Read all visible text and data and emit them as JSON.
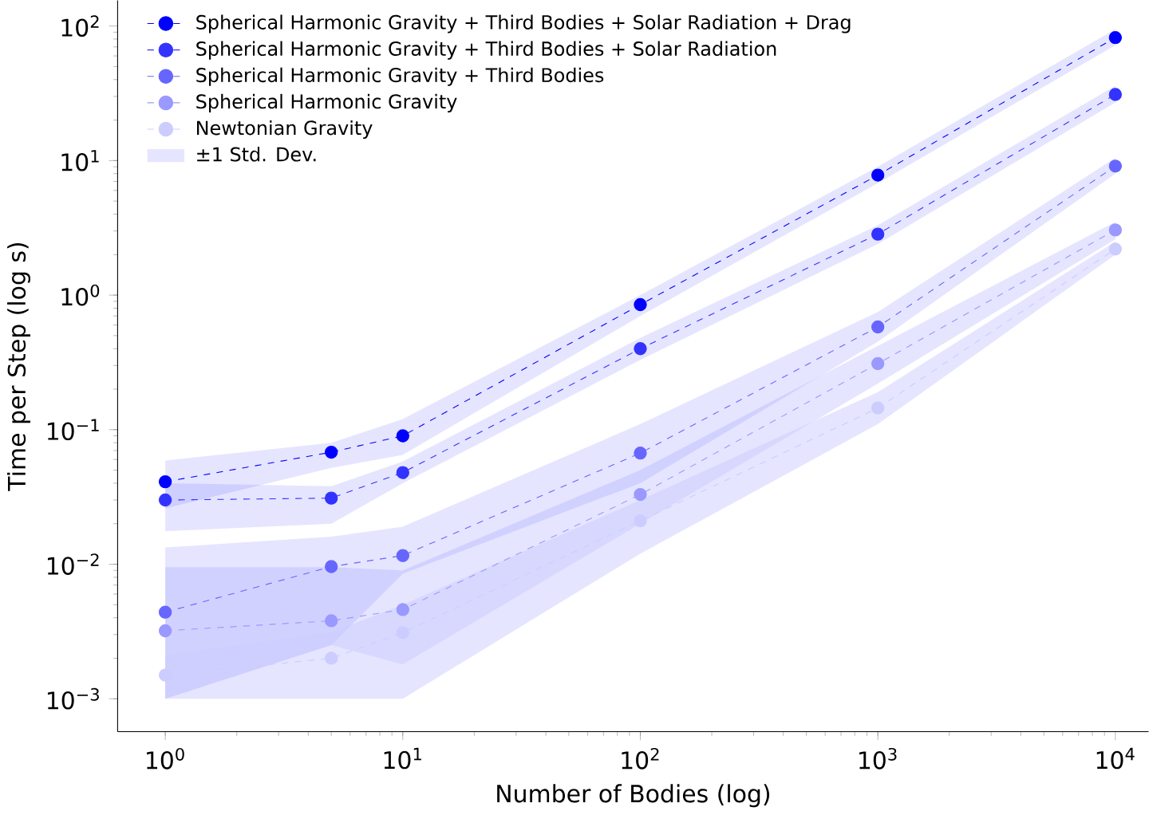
{
  "chart_data": {
    "type": "line",
    "xlabel": "Number of Bodies (log)",
    "ylabel": "Time per Step (log s)",
    "log": "xy",
    "x": [
      1,
      5,
      10,
      100,
      1000,
      10000
    ],
    "xlim": [
      0.63,
      13800
    ],
    "ylim": [
      0.00057,
      155
    ],
    "xticks": [
      {
        "value": 1,
        "label": "10$^{0}$"
      },
      {
        "value": 10,
        "label": "10$^{1}$"
      },
      {
        "value": 100,
        "label": "10$^{2}$"
      },
      {
        "value": 1000,
        "label": "10$^{3}$"
      },
      {
        "value": 10000,
        "label": "10$^{4}$"
      }
    ],
    "yticks": [
      {
        "value": 0.001,
        "label": "10$^{−3}$"
      },
      {
        "value": 0.01,
        "label": "10$^{−2}$"
      },
      {
        "value": 0.1,
        "label": "10$^{−1}$"
      },
      {
        "value": 1,
        "label": "10$^{0}$"
      },
      {
        "value": 10,
        "label": "10$^{1}$"
      },
      {
        "value": 100,
        "label": "10$^{2}$"
      }
    ],
    "series": [
      {
        "name": "Spherical Harmonic Gravity + Third Bodies + Solar Radiation + Drag",
        "color": "#0000ff",
        "values": [
          0.041,
          0.068,
          0.09,
          0.85,
          7.8,
          82
        ],
        "lower": [
          0.026,
          0.052,
          0.065,
          0.7,
          6.8,
          72
        ],
        "upper": [
          0.059,
          0.08,
          0.12,
          1.0,
          9,
          95
        ]
      },
      {
        "name": "Spherical Harmonic Gravity + Third Bodies + Solar Radiation",
        "color": "#3333ff",
        "values": [
          0.03,
          0.031,
          0.048,
          0.4,
          2.84,
          31
        ],
        "lower": [
          0.0176,
          0.02,
          0.04,
          0.33,
          2.4,
          27
        ],
        "upper": [
          0.04,
          0.038,
          0.058,
          0.48,
          3.3,
          36
        ]
      },
      {
        "name": "Spherical Harmonic Gravity + Third Bodies",
        "color": "#6666ff",
        "values": [
          0.0044,
          0.0096,
          0.0116,
          0.067,
          0.58,
          9.1
        ],
        "lower": [
          0.001,
          0.0025,
          0.0085,
          0.04,
          0.45,
          8
        ],
        "upper": [
          0.0133,
          0.016,
          0.019,
          0.11,
          0.75,
          10.5
        ]
      },
      {
        "name": "Spherical Harmonic Gravity",
        "color": "#9999ff",
        "values": [
          0.0032,
          0.0038,
          0.0046,
          0.033,
          0.31,
          3.05
        ],
        "lower": [
          0.001,
          0.0025,
          0.0018,
          0.02,
          0.22,
          2.6
        ],
        "upper": [
          0.0095,
          0.0095,
          0.009,
          0.05,
          0.42,
          3.5
        ]
      },
      {
        "name": "Newtonian Gravity",
        "color": "#ccccff",
        "values": [
          0.0015,
          0.002,
          0.0031,
          0.021,
          0.145,
          2.2
        ],
        "lower": [
          0.001,
          0.001,
          0.001,
          0.012,
          0.11,
          2.0
        ],
        "upper": [
          0.0021,
          0.0031,
          0.005,
          0.03,
          0.19,
          2.5
        ]
      }
    ],
    "annotations": [
      "±1 Std. Dev."
    ],
    "legend": "top left",
    "marker": "circle",
    "line_style": "dashed",
    "grid": false
  }
}
